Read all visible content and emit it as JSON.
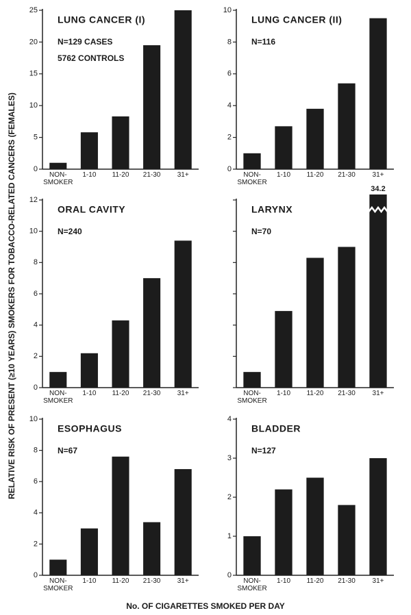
{
  "chart_data": [
    {
      "type": "bar",
      "title": "LUNG CANCER (I)",
      "notes": [
        "N=129 CASES",
        "5762 CONTROLS"
      ],
      "categories": [
        "NON-SMOKER",
        "1-10",
        "11-20",
        "21-30",
        "31+"
      ],
      "values": [
        1.0,
        5.8,
        8.3,
        19.5,
        25
      ],
      "color": "#1c1c1c",
      "ylim": [
        0,
        25
      ],
      "yticks": [
        0,
        5,
        10,
        15,
        20,
        25
      ],
      "show_tick_labels": true
    },
    {
      "type": "bar",
      "title": "LUNG CANCER (II)",
      "notes": [
        "N=116"
      ],
      "categories": [
        "NON-SMOKER",
        "1-10",
        "11-20",
        "21-30",
        "31+"
      ],
      "values": [
        1.0,
        2.7,
        3.8,
        5.4,
        9.5
      ],
      "color": "#1c1c1c",
      "ylim": [
        0,
        10
      ],
      "yticks": [
        0,
        2,
        4,
        6,
        8,
        10
      ],
      "show_tick_labels": true
    },
    {
      "type": "bar",
      "title": "ORAL CAVITY",
      "notes": [
        "N=240"
      ],
      "categories": [
        "NON-SMOKER",
        "1-10",
        "11-20",
        "21-30",
        "31+"
      ],
      "values": [
        1.0,
        2.2,
        4.3,
        7.0,
        9.4
      ],
      "color": "#1c1c1c",
      "ylim": [
        0,
        12
      ],
      "yticks": [
        0,
        2,
        4,
        6,
        8,
        10,
        12
      ],
      "show_tick_labels": true
    },
    {
      "type": "bar",
      "title": "LARYNX",
      "notes": [
        "N=70"
      ],
      "categories": [
        "NON-SMOKER",
        "1-10",
        "11-20",
        "21-30",
        "31+"
      ],
      "values": [
        1.0,
        4.9,
        8.3,
        9.0,
        34.2
      ],
      "value_labels": [
        null,
        null,
        null,
        null,
        "34.2"
      ],
      "color": "#1c1c1c",
      "ylim": [
        0,
        12
      ],
      "yticks": [
        0,
        2,
        4,
        6,
        8,
        10,
        12
      ],
      "show_tick_labels": false
    },
    {
      "type": "bar",
      "title": "ESOPHAGUS",
      "notes": [
        "N=67"
      ],
      "categories": [
        "NON-SMOKER",
        "1-10",
        "11-20",
        "21-30",
        "31+"
      ],
      "values": [
        1.0,
        3.0,
        7.6,
        3.4,
        6.8
      ],
      "color": "#1c1c1c",
      "ylim": [
        0,
        10
      ],
      "yticks": [
        0,
        2,
        4,
        6,
        8,
        10
      ],
      "show_tick_labels": true
    },
    {
      "type": "bar",
      "title": "BLADDER",
      "notes": [
        "N=127"
      ],
      "categories": [
        "NON-SMOKER",
        "1-10",
        "11-20",
        "21-30",
        "31+"
      ],
      "values": [
        1.0,
        2.2,
        2.5,
        1.8,
        3.0
      ],
      "color": "#1c1c1c",
      "ylim": [
        0,
        4
      ],
      "yticks": [
        0,
        1,
        2,
        3,
        4
      ],
      "show_tick_labels": true
    }
  ],
  "y_label": "RELATIVE RISK OF PRESENT (≥10 YEARS) SMOKERS FOR TOBACCO-RELATED CANCERS (FEMALES)",
  "x_label": "No. OF CIGARETTES SMOKED PER DAY"
}
